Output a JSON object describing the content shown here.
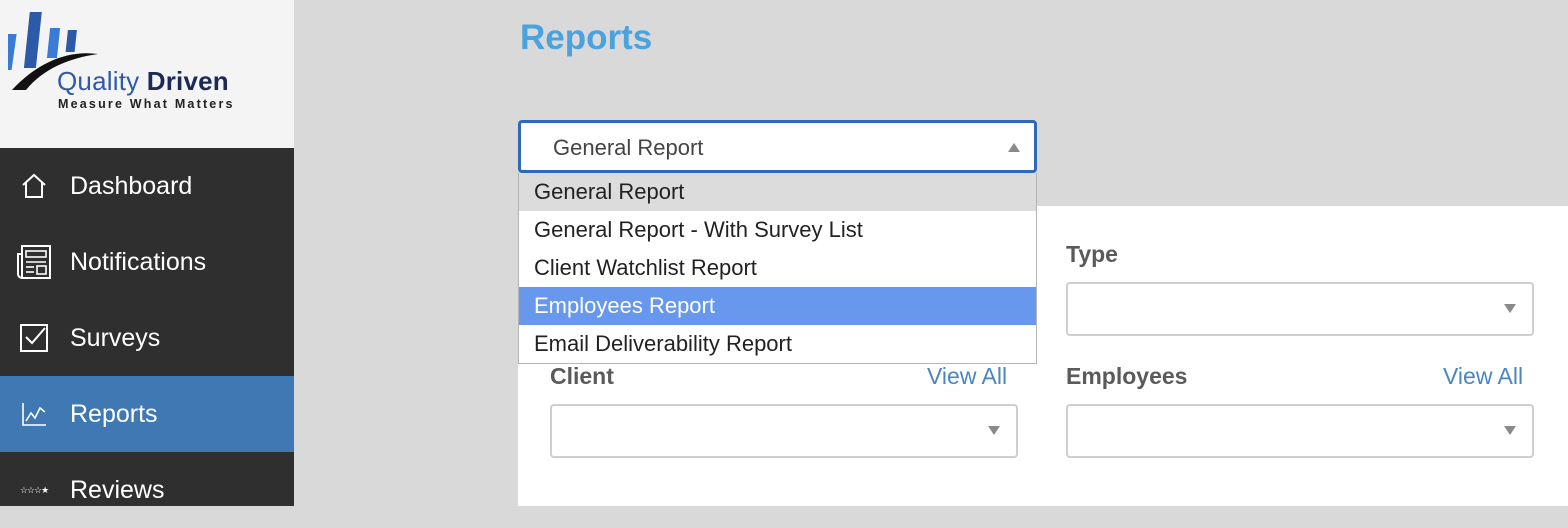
{
  "app": {
    "logo_name": "Quality Driven",
    "logo_name_part1": "Quality",
    "logo_name_part2": "Driven",
    "logo_tagline": "Measure What Matters"
  },
  "sidebar": {
    "items": [
      {
        "label": "Dashboard",
        "icon": "home-icon"
      },
      {
        "label": "Notifications",
        "icon": "newspaper-icon"
      },
      {
        "label": "Surveys",
        "icon": "checkbox-icon"
      },
      {
        "label": "Reports",
        "icon": "line-chart-icon",
        "active": true
      },
      {
        "label": "Reviews",
        "icon": "stars-icon"
      }
    ]
  },
  "main": {
    "title": "Reports",
    "report_select": {
      "value": "General Report",
      "options": [
        "General Report",
        "General Report - With Survey List",
        "Client Watchlist Report",
        "Employees Report",
        "Email Deliverability Report"
      ],
      "hovered_option": "General Report",
      "highlighted_option": "Employees Report"
    },
    "filters": {
      "type_label": "Type",
      "client_label": "Client",
      "employees_label": "Employees",
      "view_all_label": "View All"
    }
  },
  "colors": {
    "sidebar_bg": "#2f2f2f",
    "sidebar_active": "#3f78b3",
    "title_blue": "#4aa3df",
    "highlight_option": "#6898ee",
    "link_blue": "#4a86c0"
  }
}
